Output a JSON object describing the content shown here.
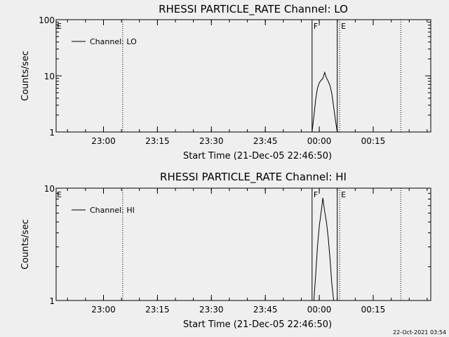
{
  "footer": {
    "timestamp": "22-Oct-2021 03:54"
  },
  "chart_data": [
    {
      "type": "line",
      "title": "RHESSI PARTICLE_RATE Channel: LO",
      "xlabel": "Start Time (21-Dec-05 22:46:50)",
      "ylabel": "Counts/sec",
      "yscale": "log",
      "ylim": [
        1,
        100
      ],
      "yticks": [
        1,
        10,
        100
      ],
      "ytick_labels": [
        "1",
        "10",
        "100"
      ],
      "xlim": [
        "22:46:50",
        "00:31:00"
      ],
      "xticks": [
        "23:00",
        "23:15",
        "23:30",
        "23:45",
        "00:00",
        "00:15"
      ],
      "legend": {
        "position": "top-left",
        "label": "Channel: LO"
      },
      "series": [
        {
          "name": "Channel: LO",
          "color": "#000000",
          "x": [
            "23:58:00",
            "23:58:30",
            "23:59:00",
            "23:59:30",
            "00:00:00",
            "00:00:30",
            "00:01:00",
            "00:01:30",
            "00:02:00",
            "00:02:30",
            "00:03:00",
            "00:03:30",
            "00:04:00",
            "00:04:30",
            "00:05:00"
          ],
          "y": [
            1.0,
            1.9,
            3.8,
            6.0,
            7.5,
            8.3,
            9.0,
            11.5,
            9.2,
            8.0,
            6.6,
            4.8,
            2.8,
            1.6,
            1.0
          ]
        }
      ],
      "vertical_lines": [
        {
          "x": "23:05:20",
          "style": "dotted",
          "label": ""
        },
        {
          "x": "23:58:00",
          "style": "solid",
          "label": "F"
        },
        {
          "x": "00:05:00",
          "style": "solid",
          "label": ""
        },
        {
          "x": "00:05:40",
          "style": "dotted",
          "label": "E"
        },
        {
          "x": "00:22:40",
          "style": "dotted",
          "label": ""
        }
      ],
      "corner_label": "E"
    },
    {
      "type": "line",
      "title": "RHESSI PARTICLE_RATE Channel: HI",
      "xlabel": "Start Time (21-Dec-05 22:46:50)",
      "ylabel": "Counts/sec",
      "yscale": "log",
      "ylim": [
        1,
        10
      ],
      "yticks": [
        1,
        10
      ],
      "ytick_labels": [
        "1",
        "10"
      ],
      "xlim": [
        "22:46:50",
        "00:31:00"
      ],
      "xticks": [
        "23:00",
        "23:15",
        "23:30",
        "23:45",
        "00:00",
        "00:15"
      ],
      "legend": {
        "position": "top-left",
        "label": "Channel: HI"
      },
      "series": [
        {
          "name": "Channel: HI",
          "color": "#000000",
          "x": [
            "23:58:30",
            "23:59:00",
            "23:59:30",
            "00:00:00",
            "00:00:30",
            "00:01:00",
            "00:01:30",
            "00:02:00",
            "00:02:30",
            "00:03:00",
            "00:03:30",
            "00:04:00"
          ],
          "y": [
            1.0,
            1.7,
            3.0,
            4.6,
            6.0,
            8.2,
            6.2,
            5.0,
            3.6,
            2.3,
            1.4,
            1.0
          ]
        }
      ],
      "vertical_lines": [
        {
          "x": "23:05:20",
          "style": "dotted",
          "label": ""
        },
        {
          "x": "23:58:00",
          "style": "solid",
          "label": "F"
        },
        {
          "x": "00:05:00",
          "style": "solid",
          "label": ""
        },
        {
          "x": "00:05:40",
          "style": "dotted",
          "label": "E"
        },
        {
          "x": "00:22:40",
          "style": "dotted",
          "label": ""
        }
      ],
      "corner_label": "E"
    }
  ]
}
